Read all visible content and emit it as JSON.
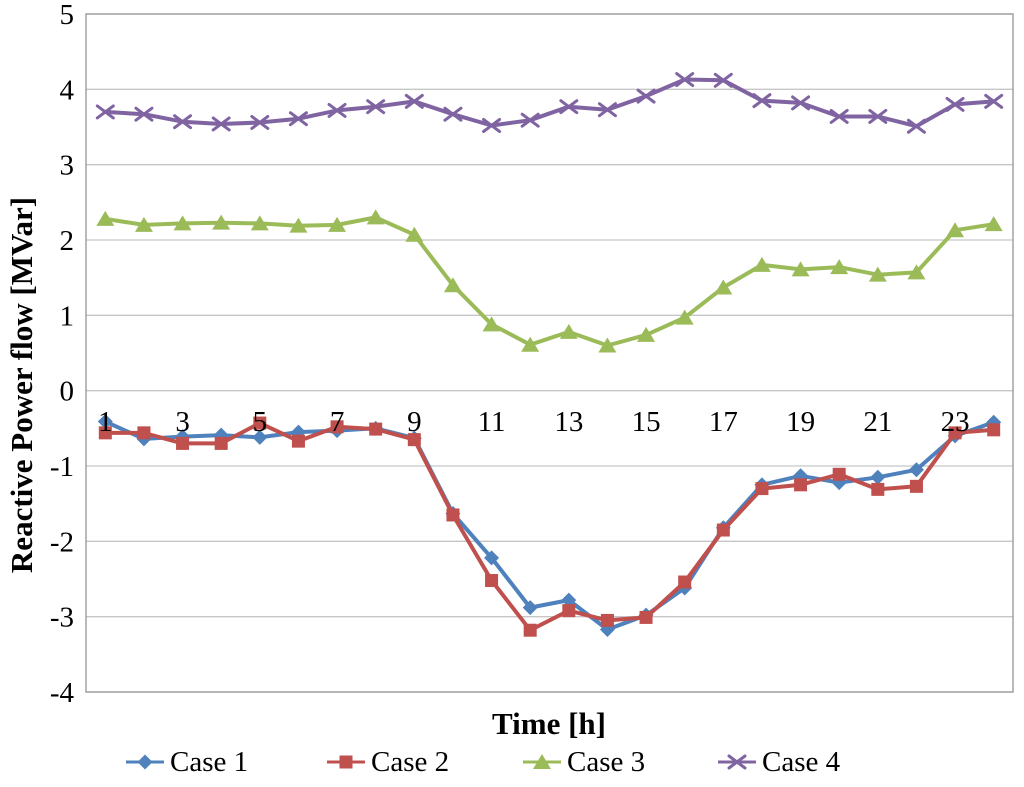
{
  "chart_data": {
    "type": "line",
    "title": "",
    "xlabel": "Time [h]",
    "ylabel": "Reactive Power flow [MVar]",
    "x": [
      1,
      2,
      3,
      4,
      5,
      6,
      7,
      8,
      9,
      10,
      11,
      12,
      13,
      14,
      15,
      16,
      17,
      18,
      19,
      20,
      21,
      22,
      23,
      24
    ],
    "x_tick_labels": [
      "1",
      "3",
      "5",
      "7",
      "9",
      "11",
      "13",
      "15",
      "17",
      "19",
      "21",
      "23"
    ],
    "y_tick_labels": [
      "5",
      "4",
      "3",
      "2",
      "1",
      "0",
      "-1",
      "-2",
      "-3",
      "-4"
    ],
    "ylim": [
      -4,
      5
    ],
    "ytick_step": 1,
    "grid": "horizontal",
    "legend_position": "bottom",
    "axis_color": "#9c9c9c",
    "gridline_color": "#c6c6c6",
    "series": [
      {
        "name": "Case 1",
        "color": "#4F81BD",
        "marker": "diamond",
        "values": [
          -0.41,
          -0.64,
          -0.61,
          -0.59,
          -0.62,
          -0.55,
          -0.53,
          -0.5,
          -0.63,
          -1.63,
          -2.22,
          -2.88,
          -2.78,
          -3.17,
          -2.98,
          -2.62,
          -1.82,
          -1.25,
          -1.13,
          -1.22,
          -1.15,
          -1.05,
          -0.6,
          -0.42
        ]
      },
      {
        "name": "Case 2",
        "color": "#C0504D",
        "marker": "square",
        "values": [
          -0.56,
          -0.56,
          -0.7,
          -0.7,
          -0.43,
          -0.67,
          -0.48,
          -0.51,
          -0.65,
          -1.65,
          -2.52,
          -3.18,
          -2.92,
          -3.05,
          -3.01,
          -2.54,
          -1.85,
          -1.3,
          -1.25,
          -1.11,
          -1.31,
          -1.27,
          -0.56,
          -0.52
        ]
      },
      {
        "name": "Case 3",
        "color": "#9BBB59",
        "marker": "triangle",
        "values": [
          2.28,
          2.2,
          2.22,
          2.23,
          2.22,
          2.19,
          2.2,
          2.3,
          2.07,
          1.4,
          0.88,
          0.61,
          0.78,
          0.6,
          0.74,
          0.97,
          1.37,
          1.67,
          1.61,
          1.64,
          1.54,
          1.57,
          2.13,
          2.21
        ]
      },
      {
        "name": "Case 4",
        "color": "#8064A2",
        "marker": "x",
        "values": [
          3.7,
          3.67,
          3.57,
          3.54,
          3.56,
          3.61,
          3.72,
          3.77,
          3.84,
          3.67,
          3.52,
          3.59,
          3.77,
          3.73,
          3.91,
          4.13,
          4.12,
          3.85,
          3.82,
          3.64,
          3.64,
          3.51,
          3.8,
          3.84
        ]
      }
    ]
  }
}
